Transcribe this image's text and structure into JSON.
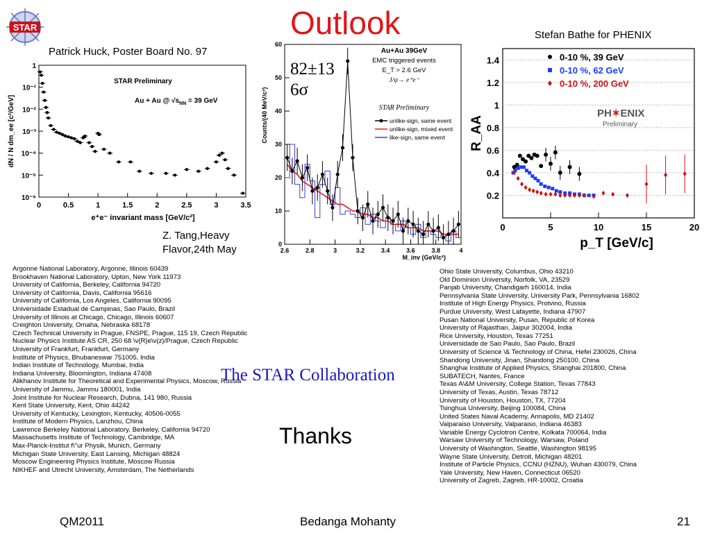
{
  "slide": {
    "title": "Outlook",
    "logo_text": "STAR",
    "label_left": "Patrick Huck, Poster Board No. 97",
    "label_right": "Stefan Bathe for PHENIX",
    "label_center_1": "Z. Tang,Heavy",
    "label_center_2": "Flavor,24th May",
    "annot_1": "82±13",
    "annot_2": "6σ",
    "collaboration": "The STAR Collaboration",
    "thanks": "Thanks",
    "footer_left": "QM2011",
    "footer_center": "Bedanga Mohanty",
    "footer_right": "21"
  },
  "institutions_left": [
    "Argonne National Laboratory, Argonne, Illinois 60439",
    "Brookhaven National Laboratory, Upton, New York 11973",
    "University of California, Berkeley, California 94720",
    "University of California, Davis, California 95616",
    "University of California, Los Angeles, California 90095",
    "Universidade Estadual de Campinas, Sao Paulo, Brazil",
    "University of Illinois at Chicago, Chicago, Illinois 60607",
    "Creighton University, Omaha, Nebraska 68178",
    "Czech Technical University in Prague, FNSPE, Prague, 115 19, Czech Republic",
    "Nuclear Physics Institute AS CR, 250 68 \\v{R}e\\v{z}/Prague, Czech Republic",
    "University of Frankfurt, Frankfurt, Germany",
    "Institute of Physics, Bhubaneswar 751005, India",
    "Indian Institute of Technology, Mumbai, India",
    "Indiana University, Bloomington, Indiana 47408",
    "Alikhanov Institute for Theoretical and Experimental Physics, Moscow, Russia",
    "University of Jammu, Jammu 180001, India",
    "Joint Institute for Nuclear Research, Dubna, 141 980, Russia",
    "Kent State University, Kent, Ohio 44242",
    "University of Kentucky, Lexington, Kentucky, 40506-0055",
    "Institute of Modern Physics, Lanzhou, China",
    "Lawrence Berkeley National Laboratory, Berkeley, California 94720",
    "Massachusetts Institute of Technology, Cambridge, MA",
    "Max-Planck-Institut f\\\"ur Physik, Munich, Germany",
    "Michigan State University, East Lansing, Michigan 48824",
    "Moscow Engineering Physics Institute, Moscow Russia",
    "NIKHEF and Utrecht University, Amsterdam, The Netherlands"
  ],
  "institutions_right": [
    "Ohio State University, Columbus, Ohio 43210",
    "Old Dominion University, Norfolk, VA, 23529",
    "Panjab University, Chandigarh 160014, India",
    "Pennsylvania State University, University Park, Pennsylvania 16802",
    "Institute of High Energy Physics, Protvino, Russia",
    "Purdue University, West Lafayette, Indiana 47907",
    "Pusan National University, Pusan, Republic of Korea",
    "University of Rajasthan, Jaipur 302004, India",
    "Rice University, Houston, Texas 77251",
    "Universidade de Sao Paulo, Sao Paulo, Brazil",
    "University of Science \\& Technology of China, Hefei 230026, China",
    "Shandong University, Jinan, Shandong 250100, China",
    "Shanghai Institute of Applied Physics, Shanghai 201800, China",
    "SUBATECH, Nantes, France",
    "Texas A\\&M University, College Station, Texas 77843",
    "University of Texas, Austin, Texas 78712",
    "University of Houston, Houston, TX, 77204",
    "Tsinghua University, Beijing 100084, China",
    "United States Naval Academy, Annapolis, MD 21402",
    "Valparaiso University, Valparaiso, Indiana 46383",
    "Variable Energy Cyclotron Centre, Kolkata 700064, India",
    "Warsaw University of Technology, Warsaw, Poland",
    "University of Washington, Seattle, Washington 98195",
    "Wayne State University, Detroit, Michigan 48201",
    "Institute of Particle Physics, CCNU (HZNU), Wuhan 430079, China",
    "Yale University, New Haven, Connecticut 06520",
    "University of Zagreb, Zagreb, HR-10002, Croatia"
  ],
  "plot1": {
    "label_top": "STAR Preliminary",
    "label_system": "Au + Au @ √s",
    "label_sub": "NN",
    "label_energy": " = 39 GeV",
    "ylabel": "dN / N dm_ee [c²/GeV]",
    "xlabel": "e⁺e⁻ invariant mass [GeV/c²]",
    "xticks": [
      "0",
      "0.5",
      "1",
      "1.5",
      "2",
      "2.5",
      "3",
      "3.5"
    ],
    "yticks": [
      "1",
      "10⁻¹",
      "10⁻²",
      "10⁻³",
      "10⁻⁴",
      "10⁻⁵",
      "10⁻⁶"
    ]
  },
  "plot2": {
    "legend_title_1": "Au+Au 39GeV",
    "legend_title_2": "EMC triggered events",
    "legend_title_3": "E_T > 2.6 GeV",
    "legend_title_4": "J/ψ→ e⁺e⁻",
    "prelim": "STAR Preliminary",
    "legend_entries": [
      "unlike-sign, same event",
      "unlike-sign, mixed event",
      "like-sign, same event"
    ],
    "ylabel": "Counts/(40 MeV/c²)",
    "xlabel": "M_inv (GeV/c²)",
    "xticks": [
      "2.6",
      "2.8",
      "3",
      "3.2",
      "3.4",
      "3.6",
      "3.8",
      "4"
    ],
    "yticks": [
      "0",
      "10",
      "20",
      "30",
      "40",
      "50",
      "60"
    ]
  },
  "plot3": {
    "legend": [
      "0-10 %, 39 GeV",
      "0-10 %, 62 GeV",
      "0-10 %, 200 GeV"
    ],
    "logo_1": "PH",
    "logo_2": "ENIX",
    "logo_3": "Preliminary",
    "ylabel": "R_AA",
    "xlabel": "p_T [GeV/c]",
    "xticks": [
      "0",
      "5",
      "10",
      "15",
      "20"
    ],
    "yticks": [
      "0.2",
      "0.4",
      "0.6",
      "0.8",
      "1",
      "1.2",
      "1.4"
    ],
    "colors": {
      "s39": "#000000",
      "s62": "#1a3cff",
      "s200": "#d01010"
    }
  },
  "chart_data": [
    {
      "type": "scatter",
      "title": "STAR Preliminary",
      "xlabel": "e⁺e⁻ invariant mass [GeV/c²]",
      "ylabel": "dN / N dm_ee [c²/GeV]",
      "xlim": [
        0,
        3.5
      ],
      "ylim_log10": [
        -6,
        0
      ],
      "x": [
        0.02,
        0.04,
        0.06,
        0.08,
        0.1,
        0.12,
        0.14,
        0.16,
        0.2,
        0.25,
        0.3,
        0.35,
        0.4,
        0.45,
        0.5,
        0.55,
        0.6,
        0.65,
        0.7,
        0.75,
        0.78,
        0.85,
        0.9,
        0.95,
        1.0,
        1.02,
        1.1,
        1.2,
        1.35,
        1.55,
        1.7,
        1.9,
        2.15,
        2.3,
        2.5,
        2.7,
        2.85,
        3.0,
        3.05,
        3.1,
        3.15,
        3.2,
        3.3,
        3.45
      ],
      "y": [
        0.5,
        0.35,
        0.15,
        0.06,
        0.025,
        0.012,
        0.007,
        0.004,
        0.0018,
        0.0012,
        0.0009,
        0.0008,
        0.0007,
        0.0006,
        0.00055,
        0.0005,
        0.00045,
        0.00035,
        0.0003,
        0.0005,
        0.0006,
        0.0003,
        0.0002,
        0.00012,
        0.0008,
        0.0007,
        0.00015,
        0.0001,
        4e-05,
        4e-05,
        1.5e-05,
        1.2e-05,
        1.2e-05,
        1e-05,
        1.8e-05,
        1.5e-05,
        2e-05,
        4e-05,
        8e-05,
        0.0001,
        5e-05,
        2e-05,
        1e-05,
        1.5e-06
      ]
    },
    {
      "type": "line",
      "xlabel": "M_inv (GeV/c²)",
      "ylabel": "Counts/(40 MeV/c²)",
      "xlim": [
        2.6,
        4.0
      ],
      "ylim": [
        0,
        60
      ],
      "x": [
        2.62,
        2.66,
        2.7,
        2.74,
        2.78,
        2.82,
        2.86,
        2.9,
        2.94,
        2.98,
        3.02,
        3.06,
        3.1,
        3.14,
        3.18,
        3.22,
        3.26,
        3.3,
        3.34,
        3.38,
        3.42,
        3.46,
        3.5,
        3.54,
        3.58,
        3.62,
        3.66,
        3.7,
        3.74,
        3.78,
        3.82,
        3.86,
        3.9,
        3.94,
        3.98
      ],
      "series": [
        {
          "name": "unlike-sign, same event",
          "values": [
            26,
            22,
            25,
            20,
            23,
            16,
            17,
            21,
            16,
            11,
            21,
            29,
            55,
            26,
            10,
            8,
            12,
            7,
            9,
            11,
            8,
            7,
            9,
            4,
            7,
            6,
            4,
            3,
            6,
            4,
            5,
            2,
            3,
            4,
            6
          ]
        },
        {
          "name": "unlike-sign, mixed event",
          "values": [
            24,
            22,
            21,
            19,
            18,
            17,
            16,
            15,
            14,
            13,
            12,
            12,
            11,
            10,
            10,
            9,
            9,
            8,
            8,
            7,
            7,
            6,
            6,
            6,
            5,
            5,
            5,
            4,
            4,
            4,
            4,
            3,
            3,
            3,
            3
          ]
        },
        {
          "name": "like-sign, same event",
          "values": [
            20,
            30,
            18,
            14,
            24,
            19,
            8,
            18,
            22,
            12,
            17,
            9,
            10,
            9,
            8,
            11,
            6,
            9,
            7,
            5,
            8,
            6,
            4,
            7,
            5,
            3,
            6,
            2,
            4,
            3,
            2,
            3,
            1,
            4,
            2
          ]
        }
      ]
    },
    {
      "type": "scatter",
      "xlabel": "p_T [GeV/c]",
      "ylabel": "R_AA",
      "xlim": [
        0,
        20
      ],
      "ylim": [
        0,
        1.5
      ],
      "series": [
        {
          "name": "0-10 %, 39 GeV",
          "x": [
            1.2,
            1.5,
            1.8,
            2.1,
            2.4,
            2.7,
            3.0,
            3.3,
            3.6,
            4.0,
            4.5,
            5.0,
            5.5,
            6.0,
            7.0,
            8.0
          ],
          "y": [
            0.45,
            0.47,
            0.55,
            0.52,
            0.5,
            0.55,
            0.53,
            0.56,
            0.55,
            0.46,
            0.56,
            0.48,
            0.58,
            0.4,
            0.45,
            0.39
          ]
        },
        {
          "name": "0-10 %, 62 GeV",
          "x": [
            1.1,
            1.3,
            1.6,
            1.9,
            2.2,
            2.5,
            2.8,
            3.1,
            3.4,
            3.7,
            4.0,
            4.4,
            4.8,
            5.2,
            5.6,
            6.0,
            6.5,
            7.0,
            7.5,
            8.0,
            8.5,
            9.0,
            9.5
          ],
          "y": [
            0.4,
            0.42,
            0.44,
            0.45,
            0.45,
            0.42,
            0.4,
            0.37,
            0.35,
            0.33,
            0.3,
            0.28,
            0.27,
            0.26,
            0.24,
            0.23,
            0.22,
            0.22,
            0.21,
            0.21,
            0.2,
            0.2,
            0.2
          ]
        },
        {
          "name": "0-10 %, 200 GeV",
          "x": [
            1.2,
            1.6,
            2.0,
            2.4,
            2.8,
            3.2,
            3.6,
            4.0,
            4.5,
            5.0,
            5.5,
            6.0,
            6.5,
            7.0,
            7.5,
            8.0,
            8.5,
            9.5,
            10.5,
            11.5,
            13.0,
            15.0,
            17.0,
            19.0
          ],
          "y": [
            0.4,
            0.35,
            0.3,
            0.27,
            0.25,
            0.24,
            0.23,
            0.22,
            0.21,
            0.21,
            0.21,
            0.2,
            0.2,
            0.2,
            0.2,
            0.2,
            0.2,
            0.19,
            0.22,
            0.21,
            0.2,
            0.3,
            0.38,
            0.39
          ]
        }
      ]
    }
  ]
}
